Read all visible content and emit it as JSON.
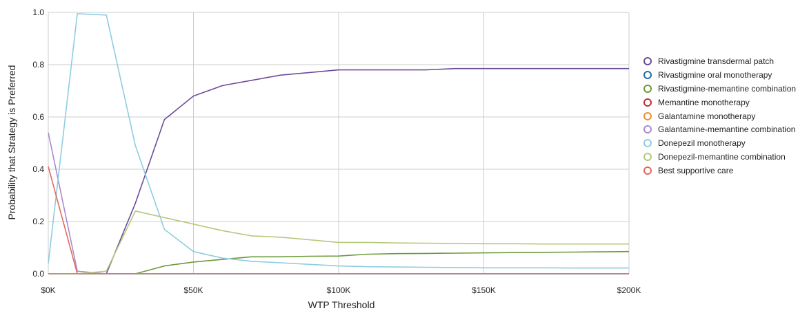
{
  "chart_data": {
    "type": "line",
    "title": "",
    "xlabel": "WTP Threshold",
    "ylabel": "Probability that Strategy is Preferred",
    "xlim": [
      0,
      200000
    ],
    "ylim": [
      0,
      1.0
    ],
    "x_ticks": [
      0,
      50000,
      100000,
      150000,
      200000
    ],
    "x_tick_labels": [
      "$0K",
      "$50K",
      "$100K",
      "$150K",
      "$200K"
    ],
    "y_ticks": [
      0,
      0.2,
      0.4,
      0.6,
      0.8,
      1.0
    ],
    "y_tick_labels": [
      "0.0",
      "0.2",
      "0.4",
      "0.6",
      "0.8",
      "1.0"
    ],
    "grid": true,
    "legend_position": "right",
    "series": [
      {
        "name": "Rivastigmine transdermal patch",
        "color": "#6b4c9a",
        "x": [
          0,
          10000,
          20000,
          30000,
          40000,
          50000,
          60000,
          70000,
          80000,
          90000,
          100000,
          110000,
          120000,
          130000,
          140000,
          150000,
          160000,
          170000,
          180000,
          190000,
          200000
        ],
        "y": [
          0.0,
          0.0,
          0.0,
          0.27,
          0.59,
          0.68,
          0.72,
          0.74,
          0.76,
          0.77,
          0.78,
          0.78,
          0.78,
          0.78,
          0.785,
          0.785,
          0.785,
          0.785,
          0.785,
          0.785,
          0.785
        ]
      },
      {
        "name": "Rivastigmine oral monotherapy",
        "color": "#1f6fa3",
        "x": [
          0,
          20000,
          50000,
          100000,
          150000,
          200000
        ],
        "y": [
          0.0,
          0.0,
          0.0,
          0.0,
          0.0,
          0.0
        ]
      },
      {
        "name": "Rivastigmine-memantine combination",
        "color": "#6b9a3a",
        "x": [
          0,
          10000,
          20000,
          30000,
          40000,
          50000,
          60000,
          70000,
          80000,
          90000,
          100000,
          110000,
          120000,
          130000,
          140000,
          150000,
          160000,
          170000,
          180000,
          190000,
          200000
        ],
        "y": [
          0.0,
          0.0,
          0.0,
          0.0,
          0.03,
          0.045,
          0.055,
          0.065,
          0.065,
          0.067,
          0.068,
          0.075,
          0.077,
          0.078,
          0.079,
          0.08,
          0.081,
          0.082,
          0.083,
          0.084,
          0.085
        ]
      },
      {
        "name": "Memantine monotherapy",
        "color": "#b83232",
        "x": [
          0,
          20000,
          50000,
          100000,
          150000,
          200000
        ],
        "y": [
          0.0,
          0.0,
          0.0,
          0.0,
          0.0,
          0.0
        ]
      },
      {
        "name": "Galantamine monotherapy",
        "color": "#e8922e",
        "x": [
          0,
          20000,
          50000,
          100000,
          150000,
          200000
        ],
        "y": [
          0.0,
          0.0,
          0.0,
          0.0,
          0.0,
          0.0
        ]
      },
      {
        "name": "Galantamine-memantine combination",
        "color": "#a98ad0",
        "x": [
          0,
          10000,
          20000,
          30000,
          50000,
          100000,
          150000,
          200000
        ],
        "y": [
          0.54,
          0.01,
          0.0,
          0.0,
          0.0,
          0.0,
          0.0,
          0.0
        ]
      },
      {
        "name": "Donepezil monotherapy",
        "color": "#8ecde0",
        "x": [
          0,
          10000,
          20000,
          30000,
          40000,
          50000,
          60000,
          70000,
          80000,
          90000,
          100000,
          110000,
          120000,
          130000,
          140000,
          150000,
          160000,
          170000,
          180000,
          190000,
          200000
        ],
        "y": [
          0.04,
          0.995,
          0.99,
          0.49,
          0.17,
          0.085,
          0.06,
          0.048,
          0.042,
          0.036,
          0.03,
          0.027,
          0.026,
          0.025,
          0.024,
          0.023,
          0.023,
          0.023,
          0.022,
          0.022,
          0.022
        ]
      },
      {
        "name": "Donepezil-memantine combination",
        "color": "#b5c97a",
        "x": [
          0,
          10000,
          20000,
          30000,
          40000,
          50000,
          60000,
          70000,
          80000,
          90000,
          100000,
          110000,
          120000,
          130000,
          140000,
          150000,
          160000,
          170000,
          180000,
          190000,
          200000
        ],
        "y": [
          0.0,
          0.0,
          0.01,
          0.24,
          0.215,
          0.19,
          0.165,
          0.145,
          0.14,
          0.13,
          0.12,
          0.12,
          0.118,
          0.117,
          0.116,
          0.115,
          0.115,
          0.114,
          0.114,
          0.114,
          0.114
        ]
      },
      {
        "name": "Best supportive care",
        "color": "#e06b5c",
        "x": [
          0,
          10000,
          20000,
          50000,
          100000,
          150000,
          200000
        ],
        "y": [
          0.41,
          0.0,
          0.0,
          0.0,
          0.0,
          0.0,
          0.0
        ]
      }
    ]
  }
}
